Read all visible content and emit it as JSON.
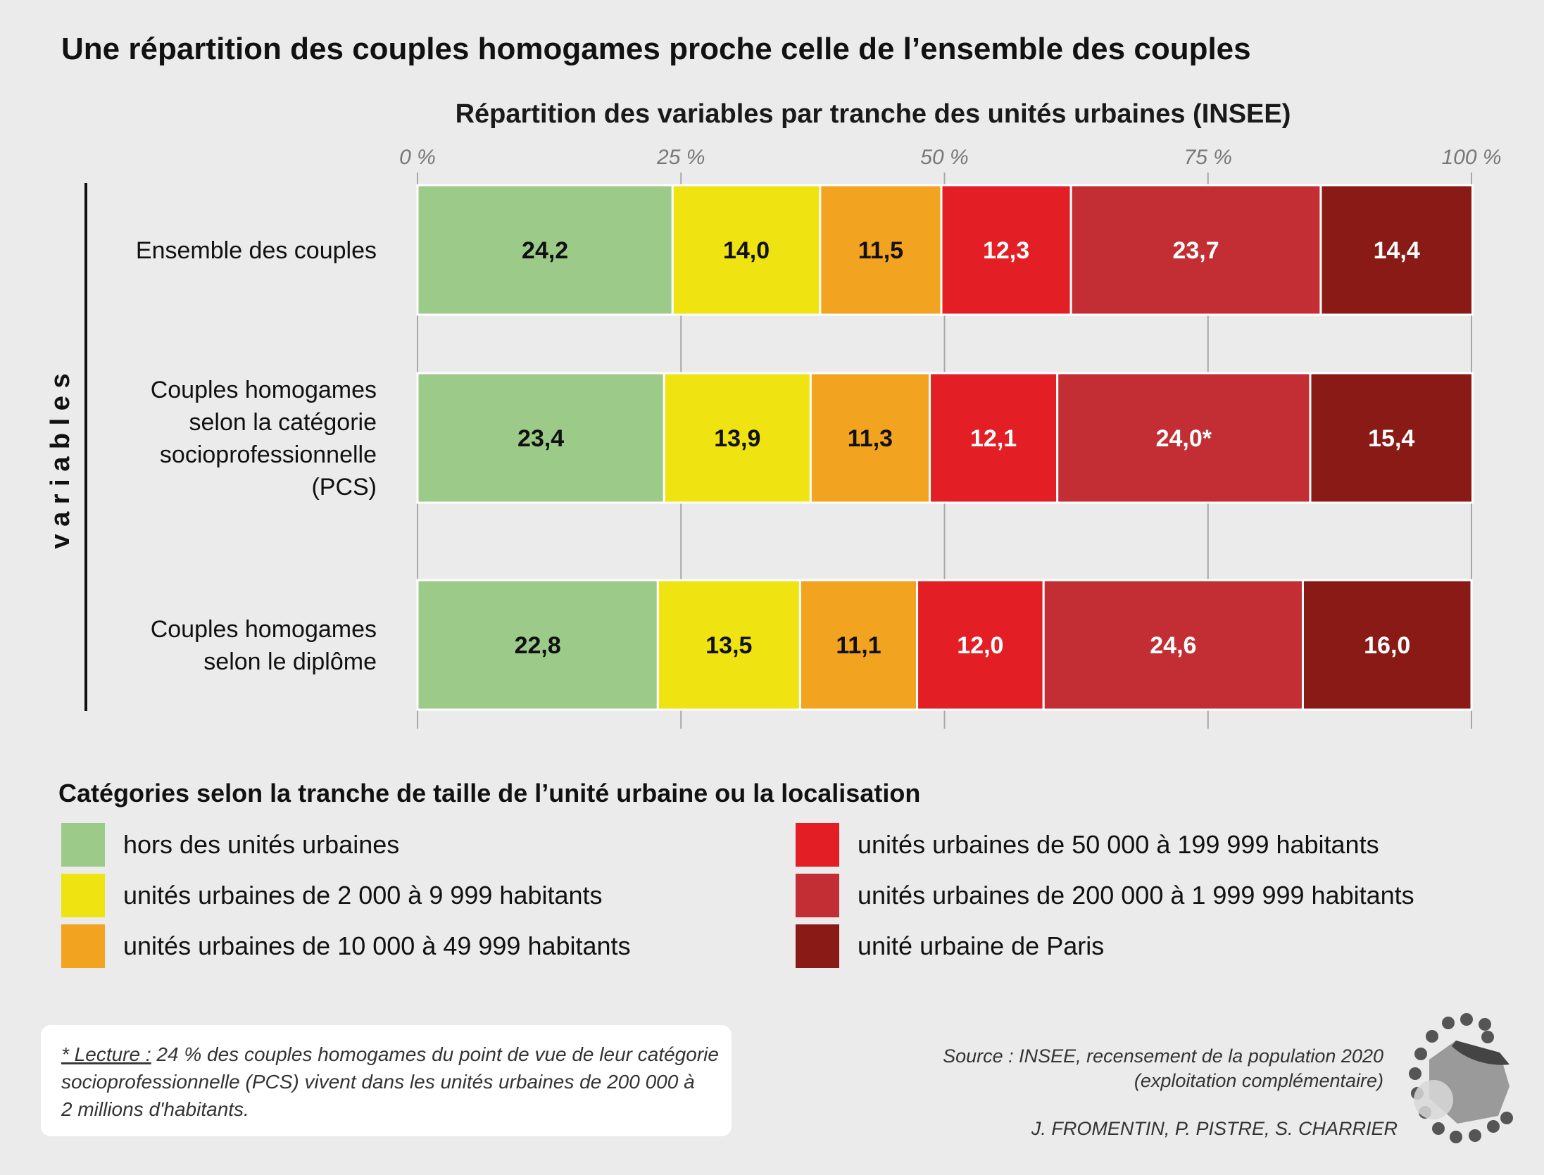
{
  "title": "Une répartition des couples homogames proche celle de l’ensemble des couples",
  "chart_data": {
    "type": "bar",
    "orientation": "horizontal",
    "stacked": true,
    "subtitle": "Répartition des variables par tranche des unités urbaines (INSEE)",
    "ylabel": "v a r i a b l e s",
    "xlim": [
      0,
      100
    ],
    "ticks": [
      "0 %",
      "25 %",
      "50 %",
      "75 %",
      "100 %"
    ],
    "tick_values": [
      0,
      25,
      50,
      75,
      100
    ],
    "categories": [
      [
        "Ensemble des couples"
      ],
      [
        "Couples homogames",
        "selon la catégorie",
        "socioprofessionnelle",
        "(PCS)"
      ],
      [
        "Couples homogames",
        "selon le diplôme"
      ]
    ],
    "series": [
      {
        "name": "hors des unités urbaines",
        "color": "#9ccb89",
        "label_color": "#111111",
        "values": [
          24.2,
          23.4,
          22.8
        ],
        "labels": [
          "24,2",
          "23,4",
          "22,8"
        ]
      },
      {
        "name": "unités urbaines de 2 000 à 9 999 habitants",
        "color": "#efe312",
        "label_color": "#111111",
        "values": [
          14.0,
          13.9,
          13.5
        ],
        "labels": [
          "14,0",
          "13,9",
          "13,5"
        ]
      },
      {
        "name": "unités urbaines de 10 000 à 49 999 habitants",
        "color": "#f2a31f",
        "label_color": "#111111",
        "values": [
          11.5,
          11.3,
          11.1
        ],
        "labels": [
          "11,5",
          "11,3",
          "11,1"
        ]
      },
      {
        "name": "unités urbaines de 50 000 à 199 999 habitants",
        "color": "#e31e24",
        "label_color": "#ffffff",
        "values": [
          12.3,
          12.1,
          12.0
        ],
        "labels": [
          "12,3",
          "12,1",
          "12,0"
        ]
      },
      {
        "name": "unités urbaines de 200 000 à 1 999 999 habitants",
        "color": "#c22e33",
        "label_color": "#ffffff",
        "values": [
          23.7,
          24.0,
          24.6
        ],
        "labels": [
          "23,7",
          "24,0*",
          "24,6"
        ]
      },
      {
        "name": "unité urbaine de Paris",
        "color": "#8a1a15",
        "label_color": "#ffffff",
        "values": [
          14.4,
          15.4,
          16.0
        ],
        "labels": [
          "14,4",
          "15,4",
          "16,0"
        ]
      }
    ],
    "legend_title": "Catégories selon la tranche de taille de l’unité urbaine ou la localisation"
  },
  "note": {
    "label": "* Lecture :",
    "lines": [
      " 24 % des couples homogames du point de vue de leur catégorie",
      "socioprofessionnelle (PCS) vivent dans les unités urbaines de 200 000 à",
      "2 millions d'habitants."
    ]
  },
  "source": {
    "lines": [
      "Source : INSEE, recensement de la population 2020",
      "(exploitation complémentaire)"
    ],
    "authors": "J. FROMENTIN, P. PISTRE, S. CHARRIER"
  }
}
